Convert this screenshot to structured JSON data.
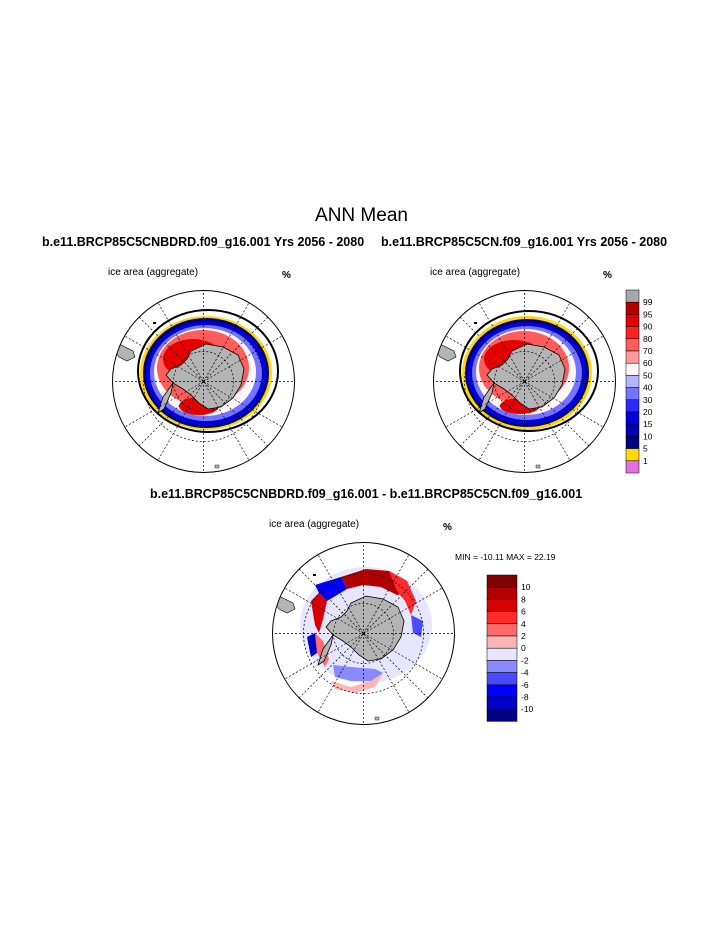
{
  "page": {
    "title": "ANN Mean"
  },
  "panels": [
    {
      "title": "b.e11.BRCP85C5CNBDRD.f09_g16.001  Yrs 2056 - 2080",
      "variable": "ice area  (aggregate)",
      "units": "%"
    },
    {
      "title": "b.e11.BRCP85C5CN.f09_g16.001  Yrs 2056 - 2080",
      "variable": "ice area  (aggregate)",
      "units": "%"
    },
    {
      "title": "b.e11.BRCP85C5CNBDRD.f09_g16.001 - b.e11.BRCP85C5CN.f09_g16.001",
      "variable": "ice area  (aggregate)",
      "units": "%",
      "stats": "MIN = -10.11 MAX =  22.19"
    }
  ],
  "chart_data": [
    {
      "type": "heatmap",
      "projection": "south-polar-stereographic",
      "title": "b.e11.BRCP85C5CNBDRD.f09_g16.001  Yrs 2056 - 2080",
      "variable": "ice area  (aggregate)",
      "units": "%",
      "colorbar": {
        "labels": [
          "99",
          "95",
          "90",
          "80",
          "70",
          "60",
          "50",
          "40",
          "30",
          "20",
          "15",
          "10",
          "5",
          "1"
        ],
        "colors": [
          "#a8a8a8",
          "#b40000",
          "#e60000",
          "#ff2020",
          "#ff5c5c",
          "#ff9a9a",
          "#fff6f6",
          "#b4b4ff",
          "#7474ff",
          "#2a2aff",
          "#0000e0",
          "#0000b4",
          "#000080",
          "#ffd800",
          "#e070e0"
        ]
      }
    },
    {
      "type": "heatmap",
      "projection": "south-polar-stereographic",
      "title": "b.e11.BRCP85C5CN.f09_g16.001  Yrs 2056 - 2080",
      "variable": "ice area  (aggregate)",
      "units": "%"
    },
    {
      "type": "heatmap",
      "projection": "south-polar-stereographic",
      "title": "b.e11.BRCP85C5CNBDRD.f09_g16.001 - b.e11.BRCP85C5CN.f09_g16.001",
      "variable": "ice area  (aggregate)",
      "units": "%",
      "min": -10.11,
      "max": 22.19,
      "colorbar": {
        "labels": [
          "10",
          "8",
          "6",
          "4",
          "2",
          "0",
          "-2",
          "-4",
          "-6",
          "-8",
          "-10"
        ],
        "colors": [
          "#800000",
          "#b00000",
          "#d80000",
          "#ff2a2a",
          "#ff6a6a",
          "#ffb4b4",
          "#e6e6ff",
          "#8a8aff",
          "#4a4aff",
          "#0000ff",
          "#0000c8",
          "#000080"
        ]
      }
    }
  ]
}
